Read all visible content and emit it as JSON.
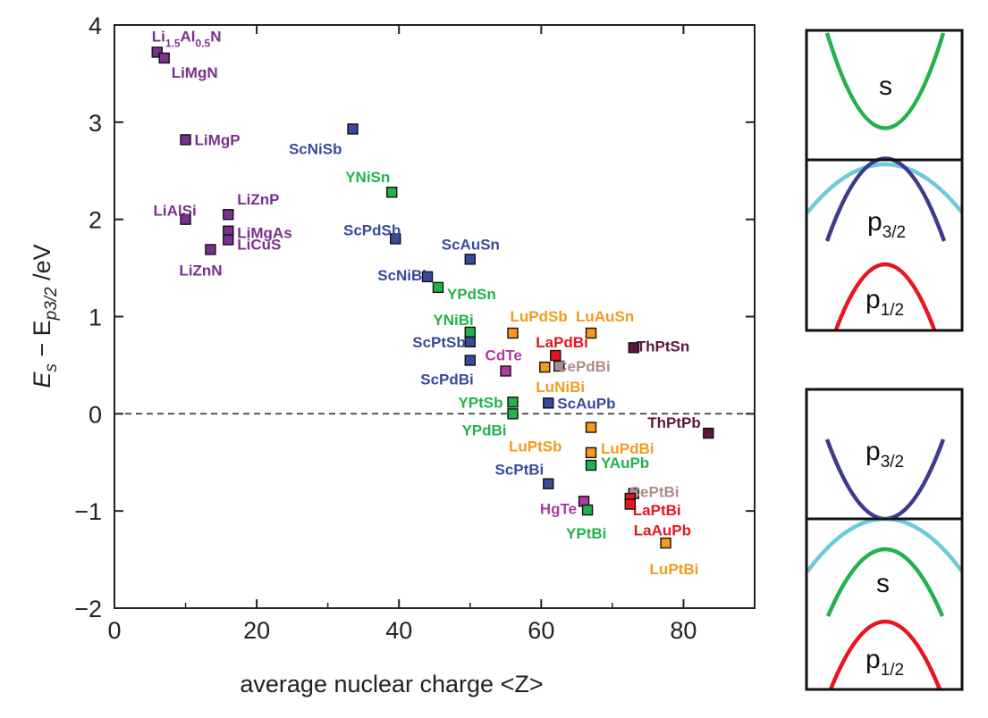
{
  "chart_data": {
    "type": "scatter",
    "title": "",
    "xlabel": "average nuclear charge <Z>",
    "ylabel_main": "E",
    "ylabel_sub1": "s",
    "ylabel_mid": " − E",
    "ylabel_sub2": "p3/2",
    "ylabel_unit": " /eV",
    "xlim": [
      0,
      90
    ],
    "ylim": [
      -2,
      4
    ],
    "xticks": [
      0,
      20,
      40,
      60,
      80
    ],
    "yticks": [
      -2,
      -1,
      0,
      1,
      2,
      3,
      4
    ],
    "ytick_labels": [
      "−2",
      "−1",
      "0",
      "1",
      "2",
      "3",
      "4"
    ],
    "zero_line": true,
    "colors": {
      "purple": "#7b2f8e",
      "blue": "#3a4a9c",
      "green": "#22b24c",
      "orange": "#f59a1c",
      "red": "#e8141e",
      "magenta": "#b03aa0",
      "rose": "#b08a8a",
      "maroon": "#5e1540"
    },
    "points": [
      {
        "name": "Li1.5Al0.5N",
        "x": 6.0,
        "y": 3.72,
        "color": "purple",
        "label": "Li",
        "sub1": "1.5",
        "mid": "Al",
        "sub2": "0.5",
        "end": "N"
      },
      {
        "name": "LiMgN",
        "x": 7.0,
        "y": 3.66,
        "color": "purple",
        "label": "LiMgN"
      },
      {
        "name": "LiMgP",
        "x": 10.0,
        "y": 2.82,
        "color": "purple",
        "label": "LiMgP"
      },
      {
        "name": "LiAlSi",
        "x": 10.0,
        "y": 2.0,
        "color": "purple",
        "label": "LiAlSi"
      },
      {
        "name": "LiZnP",
        "x": 16.0,
        "y": 2.05,
        "color": "purple",
        "label": "LiZnP"
      },
      {
        "name": "LiMgAs",
        "x": 16.0,
        "y": 1.88,
        "color": "purple",
        "label": "LiMgAs"
      },
      {
        "name": "LiCuS",
        "x": 16.0,
        "y": 1.79,
        "color": "purple",
        "label": "LiCuS"
      },
      {
        "name": "LiZnN",
        "x": 13.5,
        "y": 1.69,
        "color": "purple",
        "label": "LiZnN"
      },
      {
        "name": "ScNiSb",
        "x": 33.5,
        "y": 2.93,
        "color": "blue",
        "label": "ScNiSb"
      },
      {
        "name": "YNiSn",
        "x": 39.0,
        "y": 2.28,
        "color": "green",
        "label": "YNiSn"
      },
      {
        "name": "ScPdSb",
        "x": 39.5,
        "y": 1.8,
        "color": "blue",
        "label": "ScPdSb"
      },
      {
        "name": "ScAuSn",
        "x": 50.0,
        "y": 1.59,
        "color": "blue",
        "label": "ScAuSn"
      },
      {
        "name": "ScNiBi",
        "x": 44.0,
        "y": 1.41,
        "color": "blue",
        "label": "ScNiBi"
      },
      {
        "name": "YPdSn",
        "x": 45.5,
        "y": 1.3,
        "color": "green",
        "label": "YPdSn"
      },
      {
        "name": "YNiBi",
        "x": 50.0,
        "y": 0.84,
        "color": "green",
        "label": "YNiBi"
      },
      {
        "name": "LuPdSb",
        "x": 56.0,
        "y": 0.83,
        "color": "orange",
        "label": "LuPdSb"
      },
      {
        "name": "LuAuSn",
        "x": 67.0,
        "y": 0.83,
        "color": "orange",
        "label": "LuAuSn"
      },
      {
        "name": "ScPtSb",
        "x": 50.0,
        "y": 0.74,
        "color": "blue",
        "label": "ScPtSb"
      },
      {
        "name": "LaPdBi",
        "x": 62.0,
        "y": 0.6,
        "color": "red",
        "label": "LaPdBi"
      },
      {
        "name": "ThPtSn",
        "x": 73.0,
        "y": 0.68,
        "color": "maroon",
        "label": "ThPtSn"
      },
      {
        "name": "CdTe",
        "x": 55.0,
        "y": 0.44,
        "color": "magenta",
        "label": "CdTe"
      },
      {
        "name": "ScPdBi",
        "x": 50.0,
        "y": 0.55,
        "color": "blue",
        "label": "ScPdBi"
      },
      {
        "name": "CePdBi",
        "x": 62.5,
        "y": 0.49,
        "color": "rose",
        "label": "CePdBi"
      },
      {
        "name": "LuNiBi",
        "x": 60.5,
        "y": 0.48,
        "color": "orange",
        "label": "LuNiBi"
      },
      {
        "name": "YPtSb",
        "x": 56.0,
        "y": 0.12,
        "color": "green",
        "label": "YPtSb"
      },
      {
        "name": "ScAuPb",
        "x": 61.0,
        "y": 0.11,
        "color": "blue",
        "label": "ScAuPb"
      },
      {
        "name": "YPdBi",
        "x": 56.0,
        "y": 0.0,
        "color": "green",
        "label": "YPdBi"
      },
      {
        "name": "ThPtPb",
        "x": 83.5,
        "y": -0.2,
        "color": "maroon",
        "label": "ThPtPb"
      },
      {
        "name": "LuPtSb",
        "x": 67.0,
        "y": -0.14,
        "color": "orange",
        "label": "LuPtSb"
      },
      {
        "name": "LuPdBi",
        "x": 67.0,
        "y": -0.4,
        "color": "orange",
        "label": "LuPdBi"
      },
      {
        "name": "YAuPb",
        "x": 67.0,
        "y": -0.53,
        "color": "green",
        "label": "YAuPb"
      },
      {
        "name": "ScPtBi",
        "x": 61.0,
        "y": -0.72,
        "color": "blue",
        "label": "ScPtBi"
      },
      {
        "name": "CePtBi",
        "x": 73.0,
        "y": -0.82,
        "color": "rose",
        "label": "CePtBi"
      },
      {
        "name": "HgTe",
        "x": 66.0,
        "y": -0.9,
        "color": "magenta",
        "label": "HgTe"
      },
      {
        "name": "LaPtBi",
        "x": 72.5,
        "y": -0.87,
        "color": "red",
        "label": "LaPtBi"
      },
      {
        "name": "YPtBi",
        "x": 66.5,
        "y": -0.99,
        "color": "green",
        "label": "YPtBi"
      },
      {
        "name": "LaAuPb",
        "x": 72.5,
        "y": -0.93,
        "color": "red",
        "label": "LaAuPb"
      },
      {
        "name": "LuPtBi",
        "x": 77.5,
        "y": -1.33,
        "color": "orange",
        "label": "LuPtBi"
      }
    ]
  },
  "band_diagrams": {
    "top_panel": {
      "label_s": "s",
      "label_p32_main": "p",
      "label_p32_sub": "3/2",
      "label_p12_main": "p",
      "label_p12_sub": "1/2"
    },
    "bottom_panel": {
      "label_p32_main": "p",
      "label_p32_sub": "3/2",
      "label_s": "s",
      "label_p12_main": "p",
      "label_p12_sub": "1/2"
    },
    "colors": {
      "s": "#22b24c",
      "p32": "#3e3a8f",
      "p12": "#e8141e",
      "light": "#6dcad6",
      "frame": "#111111"
    }
  }
}
